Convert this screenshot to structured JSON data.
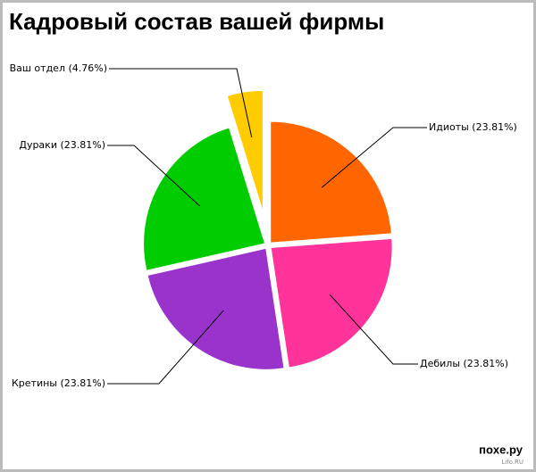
{
  "chart_data": {
    "type": "pie",
    "title": "Кадровый состав вашей фирмы",
    "labels": [
      "Идиоты (23.81%)",
      "Дебилы (23.81%)",
      "Кретины (23.81%)",
      "Дураки (23.81%)",
      "Ваш отдел (4.76%)"
    ],
    "values": [
      23.81,
      23.81,
      23.81,
      23.81,
      4.76
    ],
    "colors": [
      "#ff6600",
      "#ff3399",
      "#9933cc",
      "#00cc00",
      "#ffcc00"
    ],
    "watermark": [
      "поxe.ру",
      "Lifo.RU"
    ]
  }
}
